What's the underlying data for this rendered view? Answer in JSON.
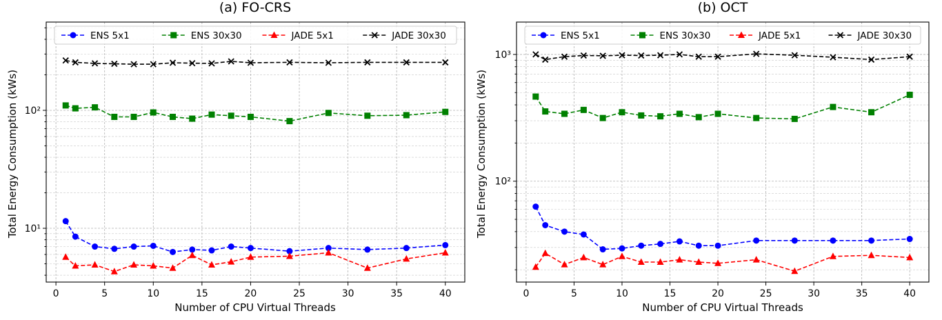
{
  "colors": {
    "ens5": "#0000ff",
    "ens30": "#008000",
    "jade5": "#ff0000",
    "jade30": "#000000"
  },
  "legend_location": "top",
  "chart_data": [
    {
      "type": "line",
      "title": "(a) FO-CRS",
      "xlabel": "Number of CPU Virtual Threads",
      "ylabel": "Total Energy Consumption (kWs)",
      "yscale": "log",
      "xlim": [
        -1,
        42
      ],
      "ylim": [
        3.5,
        560
      ],
      "xticks": [
        0,
        5,
        10,
        15,
        20,
        25,
        30,
        35,
        40
      ],
      "yticks": [
        10,
        100
      ],
      "ytick_labels": [
        "10¹",
        "10²"
      ],
      "x": [
        1,
        2,
        4,
        6,
        8,
        10,
        12,
        14,
        16,
        18,
        20,
        24,
        28,
        32,
        36,
        40
      ],
      "series": [
        {
          "name": "ENS 5x1",
          "key": "ens5",
          "marker": "circle",
          "values": [
            11.5,
            8.5,
            7.0,
            6.7,
            7.0,
            7.1,
            6.3,
            6.6,
            6.5,
            7.0,
            6.8,
            6.4,
            6.8,
            6.6,
            6.8,
            7.2
          ]
        },
        {
          "name": "ENS 30x30",
          "key": "ens30",
          "marker": "square",
          "values": [
            110,
            104,
            106,
            88,
            88,
            96,
            88,
            85,
            92,
            90,
            88,
            81,
            95,
            90,
            91,
            97
          ]
        },
        {
          "name": "JADE 5x1",
          "key": "jade5",
          "marker": "triangle",
          "values": [
            5.7,
            4.8,
            4.9,
            4.3,
            4.9,
            4.8,
            4.6,
            5.9,
            4.9,
            5.2,
            5.7,
            5.8,
            6.2,
            4.6,
            5.5,
            6.2
          ]
        },
        {
          "name": "JADE 30x30",
          "key": "jade30",
          "marker": "x",
          "values": [
            265,
            255,
            250,
            248,
            246,
            246,
            253,
            251,
            250,
            260,
            253,
            255,
            253,
            255,
            255,
            255
          ]
        }
      ]
    },
    {
      "type": "line",
      "title": "(b) OCT",
      "xlabel": "Number of CPU Virtual Threads",
      "ylabel": "Total Energy Consumption (kWs)",
      "yscale": "log",
      "xlim": [
        -1,
        42
      ],
      "ylim": [
        16,
        1800
      ],
      "xticks": [
        0,
        5,
        10,
        15,
        20,
        25,
        30,
        35,
        40
      ],
      "yticks": [
        100,
        1000
      ],
      "ytick_labels": [
        "10²",
        "10³"
      ],
      "x": [
        1,
        2,
        4,
        6,
        8,
        10,
        12,
        14,
        16,
        18,
        20,
        24,
        28,
        32,
        36,
        40
      ],
      "series": [
        {
          "name": "ENS 5x1",
          "key": "ens5",
          "marker": "circle",
          "values": [
            63,
            45,
            40,
            38,
            29,
            29.5,
            31,
            32,
            33.5,
            31,
            31,
            34,
            34,
            34,
            34,
            35
          ]
        },
        {
          "name": "ENS 30x30",
          "key": "ens30",
          "marker": "square",
          "values": [
            465,
            355,
            340,
            365,
            315,
            350,
            330,
            325,
            340,
            320,
            340,
            315,
            310,
            385,
            350,
            480
          ]
        },
        {
          "name": "JADE 5x1",
          "key": "jade5",
          "marker": "triangle",
          "values": [
            21,
            27,
            22,
            25,
            22,
            25.5,
            23,
            23,
            24,
            23,
            22.5,
            24,
            19.5,
            25.5,
            26,
            25
          ]
        },
        {
          "name": "JADE 30x30",
          "key": "jade30",
          "marker": "x",
          "values": [
            1000,
            910,
            960,
            980,
            975,
            985,
            980,
            985,
            1000,
            960,
            960,
            1010,
            985,
            950,
            910,
            960
          ]
        }
      ]
    }
  ]
}
